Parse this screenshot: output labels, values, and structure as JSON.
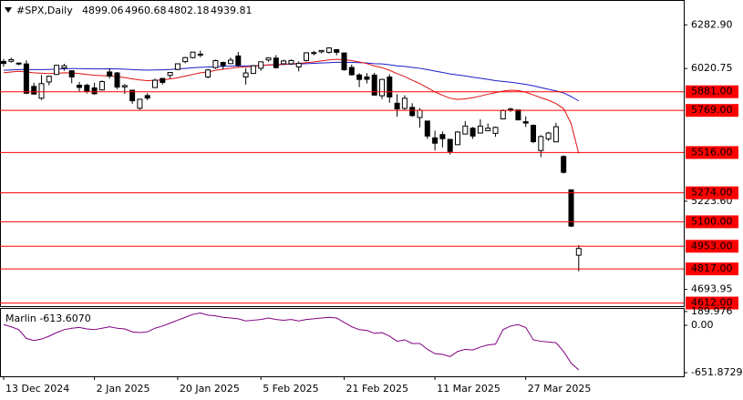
{
  "chart_data": [
    {
      "type": "candlestick",
      "title": "#SPX,Daily",
      "header_values": [
        4899.06,
        4960.68,
        4802.18,
        4939.81
      ],
      "categories": [
        "13 Dec 2024",
        null,
        null,
        null,
        null,
        null,
        null,
        null,
        null,
        null,
        null,
        null,
        "2 Jan 2025",
        null,
        null,
        null,
        null,
        null,
        null,
        null,
        null,
        null,
        null,
        "20 Jan 2025",
        null,
        null,
        null,
        null,
        null,
        null,
        null,
        null,
        null,
        null,
        "5 Feb 2025",
        null,
        null,
        null,
        null,
        null,
        null,
        null,
        null,
        null,
        null,
        "21 Feb 2025",
        null,
        null,
        null,
        null,
        null,
        null,
        null,
        null,
        null,
        null,
        null,
        "11 Mar 2025",
        null,
        null,
        null,
        null,
        null,
        null,
        null,
        null,
        null,
        null,
        null,
        "27 Mar 2025",
        null,
        null,
        null,
        null,
        null,
        null,
        null
      ],
      "open": [
        6063,
        6064,
        6053,
        6048,
        5913,
        5842,
        5940,
        5985,
        6024,
        6007,
        5920,
        5920,
        5904,
        5892,
        6000,
        5994,
        5910,
        5890,
        5782,
        5858,
        5906,
        5961,
        5979,
        6015,
        6062,
        6086,
        6107,
        5970,
        6026,
        6057,
        6050,
        6096,
        5970,
        5991,
        6022,
        6072,
        6083,
        6049,
        6049,
        6030,
        6069,
        6116,
        6121,
        6118,
        6134,
        6114,
        6027,
        5982,
        5970,
        5981,
        5857,
        5969,
        5812,
        5781,
        5787,
        5726,
        5705,
        5604,
        5624,
        5595,
        5563,
        5627,
        5662,
        5633,
        5647,
        5631,
        5718,
        5776,
        5772,
        5701,
        5679,
        5528,
        5598,
        5580,
        5492,
        5292,
        4899.06
      ],
      "high": [
        6078,
        6085,
        6057,
        6070,
        5935,
        5982,
        5978,
        6040,
        6049,
        6007,
        5940,
        5929,
        5935,
        5949,
        6021,
        6000,
        5927,
        5890,
        5838,
        5872,
        5960,
        5964,
        6000,
        6051,
        6091,
        6119,
        6128,
        6018,
        6074,
        6062,
        6086,
        6120,
        6022,
        6042,
        6062,
        6085,
        6101,
        6073,
        6076,
        6064,
        6118,
        6127,
        6129,
        6147,
        6134,
        6116,
        6044,
        5992,
        5993,
        5994,
        5959,
        5986,
        5866,
        5860,
        5812,
        5783,
        5705,
        5647,
        5642,
        5597,
        5645,
        5704,
        5670,
        5715,
        5690,
        5672,
        5775,
        5786,
        5773,
        5733,
        5685,
        5620,
        5640,
        5695,
        5500,
        5292,
        4960.68
      ],
      "low": [
        6032,
        6056,
        6040,
        5867,
        5865,
        5832,
        5920,
        5983,
        6007,
        5932,
        5880,
        5871,
        5863,
        5888,
        5960,
        5897,
        5868,
        5809,
        5773,
        5830,
        5905,
        5924,
        5962,
        6010,
        6052,
        6081,
        6088,
        5962,
        6018,
        6016,
        6050,
        6030,
        5924,
        5990,
        6007,
        6061,
        6020,
        6048,
        6042,
        6003,
        6063,
        6100,
        6111,
        6111,
        6100,
        6008,
        5978,
        5909,
        5931,
        5858,
        5837,
        5815,
        5732,
        5771,
        5730,
        5666,
        5598,
        5528,
        5547,
        5504,
        5563,
        5627,
        5598,
        5632,
        5647,
        5611,
        5718,
        5760,
        5710,
        5670,
        5572,
        5488,
        5586,
        5578,
        5390,
        5069,
        4802.18
      ],
      "close": [
        6051,
        6074,
        6050,
        5872,
        5867,
        5930,
        5974,
        6040,
        6037,
        5970,
        5907,
        5882,
        5869,
        5942,
        5975,
        5909,
        5918,
        5827,
        5836,
        5843,
        5950,
        5937,
        5997,
        6049,
        6086,
        6119,
        6101,
        6012,
        6068,
        6039,
        6071,
        6041,
        5994,
        6037,
        6061,
        6084,
        6026,
        6066,
        6068,
        6052,
        6115,
        6115,
        6129,
        6144,
        6118,
        6013,
        5983,
        5955,
        5956,
        5861,
        5955,
        5850,
        5778,
        5842,
        5738,
        5770,
        5615,
        5572,
        5599,
        5522,
        5639,
        5675,
        5615,
        5675,
        5662,
        5667,
        5768,
        5777,
        5712,
        5693,
        5581,
        5612,
        5633,
        5671,
        5397,
        5074,
        4939.81
      ],
      "up_color": "#ffffff",
      "down_color": "#000000",
      "series": [
        {
          "color": "#1c1cc8",
          "values": [
            6010,
            6012,
            6014,
            6015,
            6014,
            6014,
            6015,
            6017,
            6019,
            6020,
            6020,
            6019,
            6018,
            6018,
            6019,
            6018,
            6017,
            6014,
            6012,
            6011,
            6012,
            6013,
            6015,
            6018,
            6021,
            6025,
            6028,
            6029,
            6031,
            6033,
            6035,
            6036,
            6036,
            6037,
            6039,
            6042,
            6043,
            6045,
            6047,
            6048,
            6050,
            6052,
            6054,
            6056,
            6058,
            6058,
            6057,
            6056,
            6054,
            6050,
            6048,
            6043,
            6037,
            6033,
            6027,
            6022,
            6014,
            6005,
            5997,
            5988,
            5982,
            5976,
            5968,
            5962,
            5955,
            5948,
            5943,
            5938,
            5932,
            5925,
            5917,
            5906,
            5896,
            5886,
            5874,
            5852,
            5826
          ]
        },
        {
          "color": "#e01010",
          "values": [
            5995,
            6000,
            6004,
            6000,
            5995,
            5992,
            5990,
            5992,
            5995,
            5994,
            5990,
            5985,
            5980,
            5978,
            5976,
            5972,
            5966,
            5958,
            5952,
            5948,
            5950,
            5952,
            5958,
            5965,
            5975,
            5985,
            5995,
            6000,
            6010,
            6016,
            6022,
            6028,
            6030,
            6034,
            6038,
            6042,
            6044,
            6046,
            6048,
            6051,
            6056,
            6060,
            6066,
            6072,
            6076,
            6074,
            6068,
            6060,
            6050,
            6036,
            6026,
            6010,
            5990,
            5972,
            5950,
            5930,
            5905,
            5880,
            5860,
            5842,
            5835,
            5838,
            5845,
            5855,
            5866,
            5876,
            5885,
            5890,
            5888,
            5878,
            5862,
            5845,
            5830,
            5810,
            5780,
            5690,
            5510
          ]
        }
      ],
      "levels": [
        {
          "value": 5881,
          "label": "5881.00"
        },
        {
          "value": 5769,
          "label": "5769.00"
        },
        {
          "value": 5516,
          "label": "5516.00"
        },
        {
          "value": 5274,
          "label": "5274.00"
        },
        {
          "value": 5100,
          "label": "5100.00"
        },
        {
          "value": 4953,
          "label": "4953.00"
        },
        {
          "value": 4817,
          "label": "4817.00"
        },
        {
          "value": 4612,
          "label": "4612.00"
        }
      ],
      "level_color": "#ff0000",
      "ylim": [
        4593.3,
        6426.6
      ],
      "yticks": [
        {
          "value": 6282.9,
          "label": "6282.90"
        },
        6020.75,
        {
          "value": 5223.6,
          "label": "5223.60"
        },
        4693.95
      ]
    },
    {
      "type": "line",
      "title": "Marlin -613.6070",
      "series": [
        {
          "color": "#800080",
          "values": [
            10,
            -20,
            -60,
            -180,
            -210,
            -190,
            -150,
            -100,
            -60,
            -40,
            -30,
            -50,
            -60,
            -40,
            -20,
            -40,
            -50,
            -90,
            -100,
            -90,
            -40,
            -10,
            30,
            70,
            110,
            150,
            170,
            140,
            130,
            110,
            100,
            90,
            60,
            70,
            80,
            100,
            80,
            70,
            80,
            60,
            80,
            90,
            100,
            110,
            100,
            40,
            -20,
            -60,
            -70,
            -110,
            -100,
            -150,
            -220,
            -200,
            -250,
            -250,
            -330,
            -390,
            -400,
            -430,
            -360,
            -330,
            -340,
            -300,
            -270,
            -260,
            -60,
            -10,
            10,
            -30,
            -200,
            -220,
            -230,
            -240,
            -360,
            -520,
            -613.607
          ]
        }
      ],
      "ylim": [
        -702,
        226
      ],
      "yticks": [
        189.976,
        {
          "value": 0,
          "label": "0.00"
        },
        -651.8729
      ]
    }
  ]
}
